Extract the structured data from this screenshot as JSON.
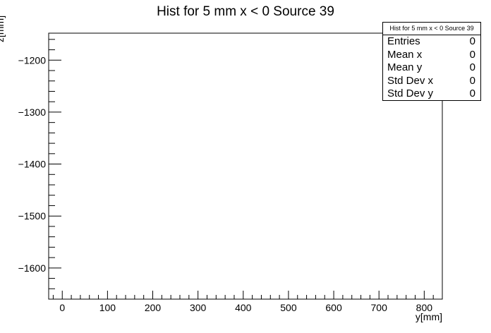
{
  "chart_data": {
    "type": "scatter",
    "title": "Hist for 5 mm x < 0 Source 39",
    "xlabel": "y[mm]",
    "ylabel": "z[mm]",
    "xlim": [
      -30,
      840
    ],
    "ylim": [
      -1660,
      -1148
    ],
    "x_ticks": [
      0,
      100,
      200,
      300,
      400,
      500,
      600,
      700,
      800
    ],
    "y_ticks": [
      -1200,
      -1300,
      -1400,
      -1500,
      -1600
    ],
    "x_tick_labels": [
      "0",
      "100",
      "200",
      "300",
      "400",
      "500",
      "600",
      "700",
      "800"
    ],
    "y_tick_labels": [
      "−1200",
      "−1300",
      "−1400",
      "−1500",
      "−1600"
    ],
    "series": [],
    "grid": false,
    "stats_box": {
      "title": "Hist for 5 mm x < 0 Source 39",
      "position": "top-right",
      "rows": [
        {
          "label": "Entries",
          "value": "0"
        },
        {
          "label": "Mean x",
          "value": "0"
        },
        {
          "label": "Mean y",
          "value": "0"
        },
        {
          "label": "Std Dev x",
          "value": "0"
        },
        {
          "label": "Std Dev y",
          "value": "0"
        }
      ]
    }
  }
}
